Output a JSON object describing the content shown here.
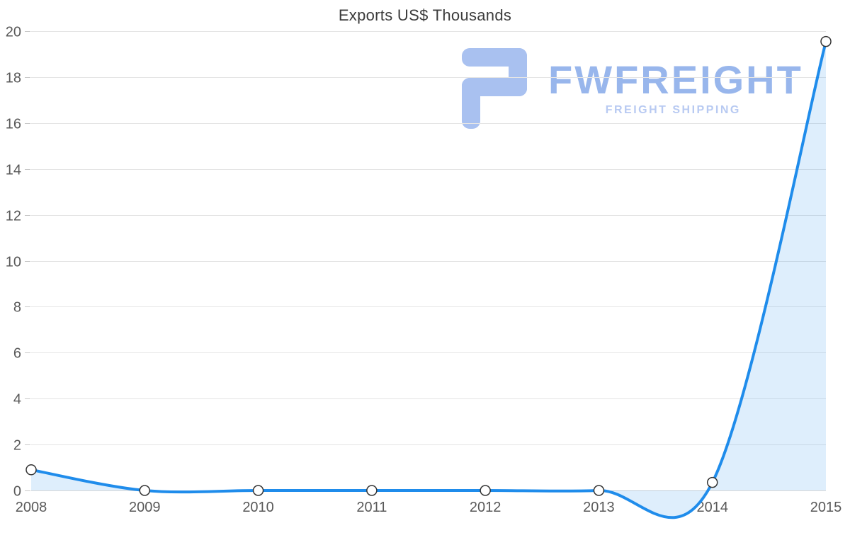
{
  "page": {
    "background_color": "#ffffff"
  },
  "chart_data": {
    "type": "area",
    "title": "Exports US$ Thousands",
    "x": [
      2008,
      2009,
      2010,
      2011,
      2012,
      2013,
      2014,
      2015
    ],
    "values": [
      0.9,
      0,
      0,
      0,
      0,
      0,
      0.35,
      19.55
    ],
    "xlabel": "",
    "ylabel": "",
    "ylim": [
      0,
      20
    ],
    "ytick_step": 2,
    "grid": true,
    "legend": "none",
    "line_color": "#1f8ceb",
    "area_opacity": 0.15,
    "marker_fill": "#ffffff",
    "marker_stroke": "#333333",
    "grid_color": "#e5e5e5",
    "axis_color": "#d6d6d6",
    "tick_color": "#c9c9c9",
    "tick_label_color": "#595959",
    "title_color": "#3c3c3c"
  },
  "watermark": {
    "brand": "FWFREIGHT",
    "tagline": "FREIGHT SHIPPING",
    "logo_color": "#a9c1f0",
    "brand_color": "#98b6ec",
    "tagline_color": "#b8caf2"
  }
}
